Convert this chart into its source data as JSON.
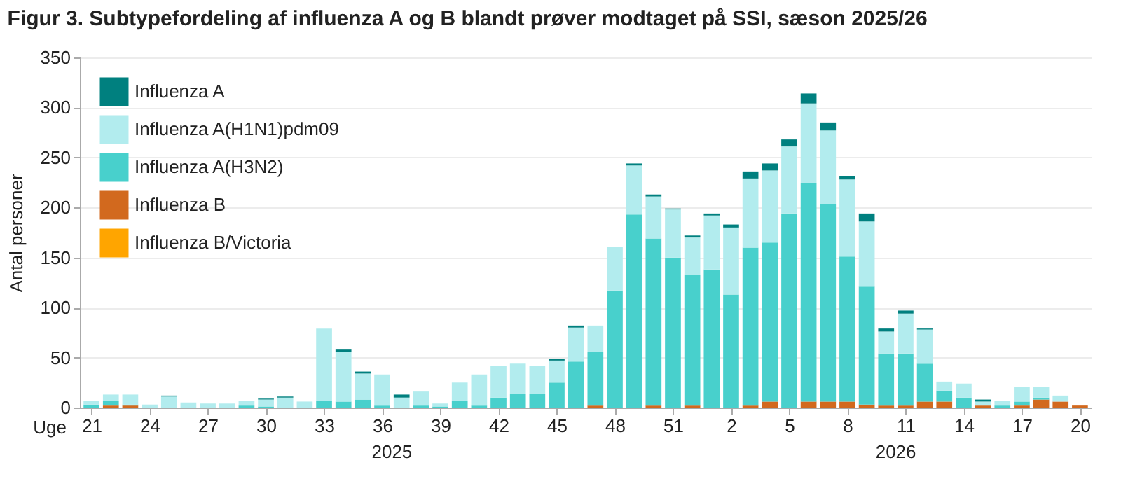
{
  "chart_data": {
    "type": "bar",
    "stacked": true,
    "title": "Figur 3. Subtypefordeling af influenza A og B blandt prøver modtaget på SSI, sæson 2025/26",
    "xlabel": "Uge",
    "ylabel": "Antal personer",
    "categories": [
      "21",
      null,
      null,
      "24",
      null,
      null,
      "27",
      null,
      null,
      "30",
      null,
      null,
      "33",
      null,
      null,
      "36",
      null,
      null,
      "39",
      null,
      null,
      "42",
      null,
      null,
      "45",
      null,
      null,
      "48",
      null,
      null,
      "51",
      null,
      null,
      "2",
      null,
      null,
      "5",
      null,
      null,
      "8",
      null,
      null,
      "11",
      null,
      null,
      "14",
      null,
      null,
      "17",
      null,
      null,
      "20"
    ],
    "series": [
      {
        "name": "Influenza B/Victoria",
        "color": "#ffa500",
        "values": [
          0,
          0,
          0,
          0,
          0,
          0,
          0,
          0,
          0,
          0,
          0,
          0,
          0,
          0,
          0,
          0,
          0,
          0,
          0,
          0,
          0,
          0,
          0,
          0,
          0,
          0,
          0,
          0,
          0,
          0,
          0,
          0,
          0,
          0,
          0,
          0,
          0,
          0,
          0,
          0,
          0,
          0,
          0,
          0,
          0,
          0,
          0,
          0,
          0,
          0,
          0,
          0
        ]
      },
      {
        "name": "Influenza B",
        "color": "#d2691e",
        "values": [
          0,
          2,
          2,
          0,
          0,
          0,
          0,
          0,
          0,
          0,
          0,
          0,
          0,
          0,
          0,
          0,
          0,
          0,
          0,
          0,
          0,
          0,
          0,
          0,
          0,
          0,
          2,
          0,
          0,
          2,
          0,
          2,
          0,
          0,
          2,
          6,
          0,
          6,
          6,
          6,
          3,
          2,
          2,
          6,
          6,
          0,
          2,
          0,
          2,
          8,
          6,
          2
        ]
      },
      {
        "name": "Influenza A(H3N2)",
        "color": "#48d0cc",
        "values": [
          3,
          5,
          1,
          0,
          0,
          0,
          0,
          0,
          2,
          1,
          0,
          0,
          7,
          6,
          8,
          2,
          0,
          2,
          1,
          7,
          2,
          10,
          14,
          14,
          25,
          46,
          54,
          117,
          193,
          167,
          150,
          131,
          138,
          113,
          158,
          159,
          194,
          218,
          197,
          145,
          118,
          52,
          52,
          38,
          11,
          10,
          0,
          2,
          4,
          2,
          0,
          0
        ]
      },
      {
        "name": "Influenza A(H1N1)pdm09",
        "color": "#b2ecee",
        "values": [
          4,
          6,
          10,
          3,
          11,
          5,
          4,
          4,
          5,
          7,
          10,
          6,
          72,
          50,
          26,
          31,
          10,
          14,
          3,
          18,
          31,
          32,
          30,
          28,
          22,
          34,
          26,
          44,
          49,
          42,
          48,
          37,
          54,
          67,
          69,
          72,
          67,
          80,
          74,
          77,
          65,
          22,
          40,
          34,
          9,
          14,
          4,
          5,
          15,
          11,
          6,
          0
        ]
      },
      {
        "name": "Influenza A",
        "color": "#00807f",
        "values": [
          0,
          0,
          0,
          0,
          1,
          0,
          0,
          0,
          0,
          1,
          1,
          0,
          0,
          2,
          2,
          0,
          3,
          0,
          0,
          0,
          0,
          0,
          0,
          0,
          2,
          2,
          0,
          0,
          2,
          2,
          1,
          2,
          2,
          3,
          7,
          7,
          7,
          10,
          8,
          3,
          8,
          3,
          3,
          1,
          0,
          0,
          2,
          0,
          0,
          0,
          0,
          0
        ]
      }
    ],
    "ylim": [
      0,
      350
    ],
    "yticks": [
      0,
      50,
      100,
      150,
      200,
      250,
      300,
      350
    ],
    "grid": "y",
    "legend": "top left",
    "annotations": [
      "2025",
      "2026"
    ]
  }
}
